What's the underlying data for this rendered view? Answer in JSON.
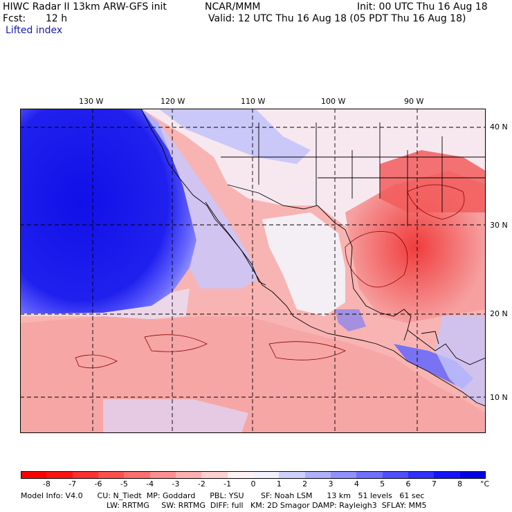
{
  "header": {
    "model_title": "HIWC Radar II 13km ARW-GFS init",
    "org": "NCAR/MMM",
    "init": "Init: 00 UTC Thu 16 Aug 18",
    "fcst_label": "Fcst:",
    "fcst_value": "12 h",
    "valid": "Valid: 12 UTC Thu 16 Aug 18 (05 PDT Thu 16 Aug 18)",
    "field": "Lifted index"
  },
  "map": {
    "lon_labels": [
      "130 W",
      "120 W",
      "110 W",
      "100 W",
      "90 W"
    ],
    "lat_labels": [
      "40 N",
      "30 N",
      "20 N",
      "10 N"
    ],
    "colors": {
      "ocean_cold": "#1c1cf0",
      "warm": "#f2585a",
      "neutral": "#fde6e6",
      "border": "#000000"
    }
  },
  "colorbar": {
    "colors": [
      "#ff0000",
      "#ff1414",
      "#ff3030",
      "#ff5050",
      "#ff7070",
      "#ff9090",
      "#ffb0b0",
      "#ffd0d0",
      "#fff2f2",
      "#f2f2ff",
      "#d0d0ff",
      "#b0b0ff",
      "#9090ff",
      "#7070ff",
      "#5050ff",
      "#3030ff",
      "#1414ff",
      "#0000e8"
    ],
    "ticks": [
      "-8",
      "-7",
      "-6",
      "-5",
      "-4",
      "-3",
      "-2",
      "-1",
      "0",
      "1",
      "2",
      "3",
      "4",
      "5",
      "6",
      "7",
      "8"
    ],
    "unit": "°C"
  },
  "footer": {
    "line1": "Model Info: V4.0      CU: N_Tiedt  MP: Goddard      PBL: YSU       SF: Noah LSM      13 km   51 levels   61 sec",
    "line2": "LW: RRTMG     SW: RRTMG  DIFF: full   KM: 2D Smagor DAMP: Rayleigh3  SFLAY: MM5"
  }
}
